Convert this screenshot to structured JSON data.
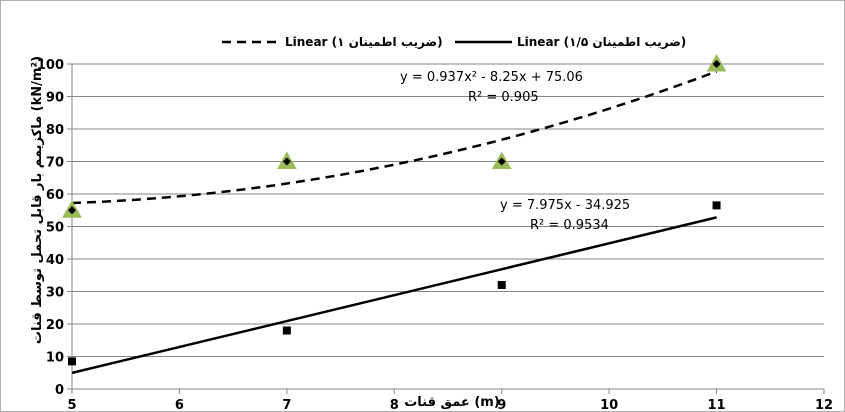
{
  "chart_data": {
    "type": "scatter",
    "xlabel": "عمق قنات  (m)",
    "ylabel": "ماکزیمم بار قابل تحمل توسط قنات (kN/m²)",
    "xlim": [
      5,
      12
    ],
    "ylim": [
      0,
      100
    ],
    "x_ticks": [
      "5",
      "6",
      "7",
      "8",
      "9",
      "10",
      "11",
      "12"
    ],
    "y_ticks": [
      "0",
      "10",
      "20",
      "30",
      "40",
      "50",
      "60",
      "70",
      "80",
      "90",
      "100"
    ],
    "grid": "horizontal",
    "legend_position": "top",
    "legend": [
      {
        "label": "Linear (ضریب اطمینان ۱)",
        "line_style": "dashed"
      },
      {
        "label": "Linear (ضریب اطمینان ۱/۵)",
        "line_style": "solid"
      }
    ],
    "series": [
      {
        "marker": "triangle",
        "color": "#9BBB59",
        "x": [
          5,
          7,
          9,
          11
        ],
        "y": [
          55,
          70,
          70,
          100
        ]
      },
      {
        "marker": "diamond",
        "color": "#000000",
        "x": [
          5,
          7,
          9,
          11
        ],
        "y": [
          55,
          70,
          70,
          100
        ]
      },
      {
        "marker": "square",
        "color": "#000000",
        "x": [
          5,
          7,
          9,
          11
        ],
        "y": [
          8.5,
          18,
          32,
          56.5
        ]
      }
    ],
    "trendlines": [
      {
        "kind": "polynomial",
        "line_style": "dashed",
        "coefficients": [
          0.937,
          -8.25,
          75.06
        ],
        "x_range": [
          5,
          11
        ],
        "equation": "y = 0.937x² - 8.25x + 75.06",
        "r2": "R² = 0.905"
      },
      {
        "kind": "linear",
        "line_style": "solid",
        "coefficients": [
          7.975,
          -34.925
        ],
        "x_range": [
          5,
          11
        ],
        "equation": "y = 7.975x - 34.925",
        "r2": "R² = 0.9534"
      }
    ]
  }
}
